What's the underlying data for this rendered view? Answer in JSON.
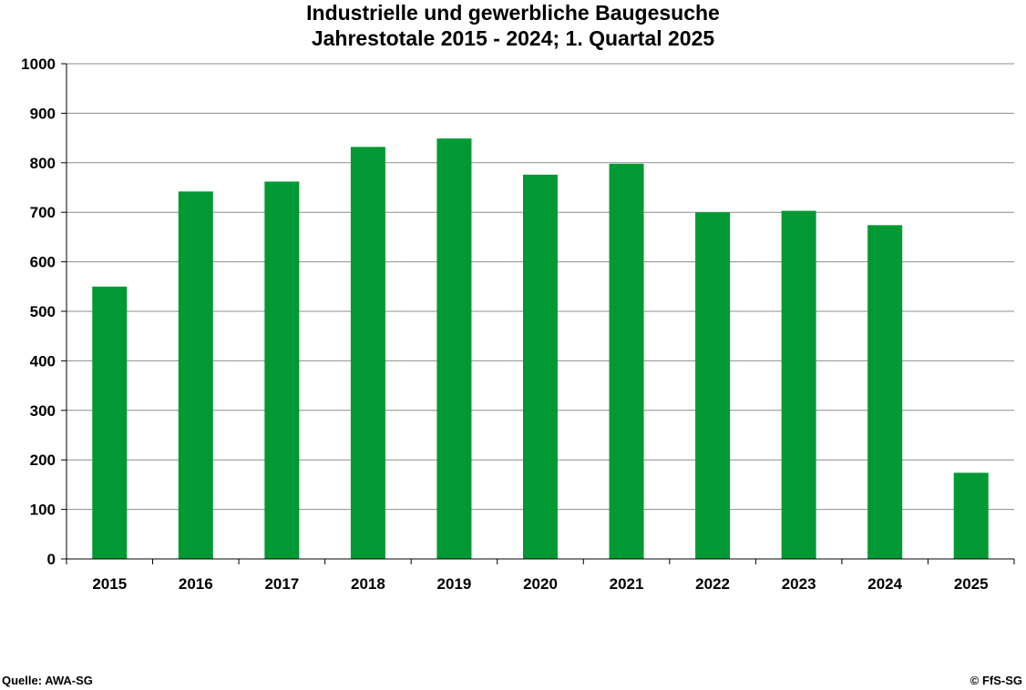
{
  "chart_data": {
    "type": "bar",
    "title": "Industrielle und gewerbliche Baugesuche",
    "subtitle": "Jahrestotale 2015 - 2024; 1. Quartal 2025",
    "categories": [
      "2015",
      "2016",
      "2017",
      "2018",
      "2019",
      "2020",
      "2021",
      "2022",
      "2023",
      "2024",
      "2025"
    ],
    "values": [
      550,
      742,
      762,
      832,
      849,
      776,
      798,
      700,
      703,
      674,
      174
    ],
    "ylim": [
      0,
      1000
    ],
    "yticks": [
      0,
      100,
      200,
      300,
      400,
      500,
      600,
      700,
      800,
      900,
      1000
    ],
    "grid": true,
    "bar_color": "#009933"
  },
  "footer": {
    "source": "Quelle: AWA-SG",
    "copyright": "© FfS-SG"
  }
}
